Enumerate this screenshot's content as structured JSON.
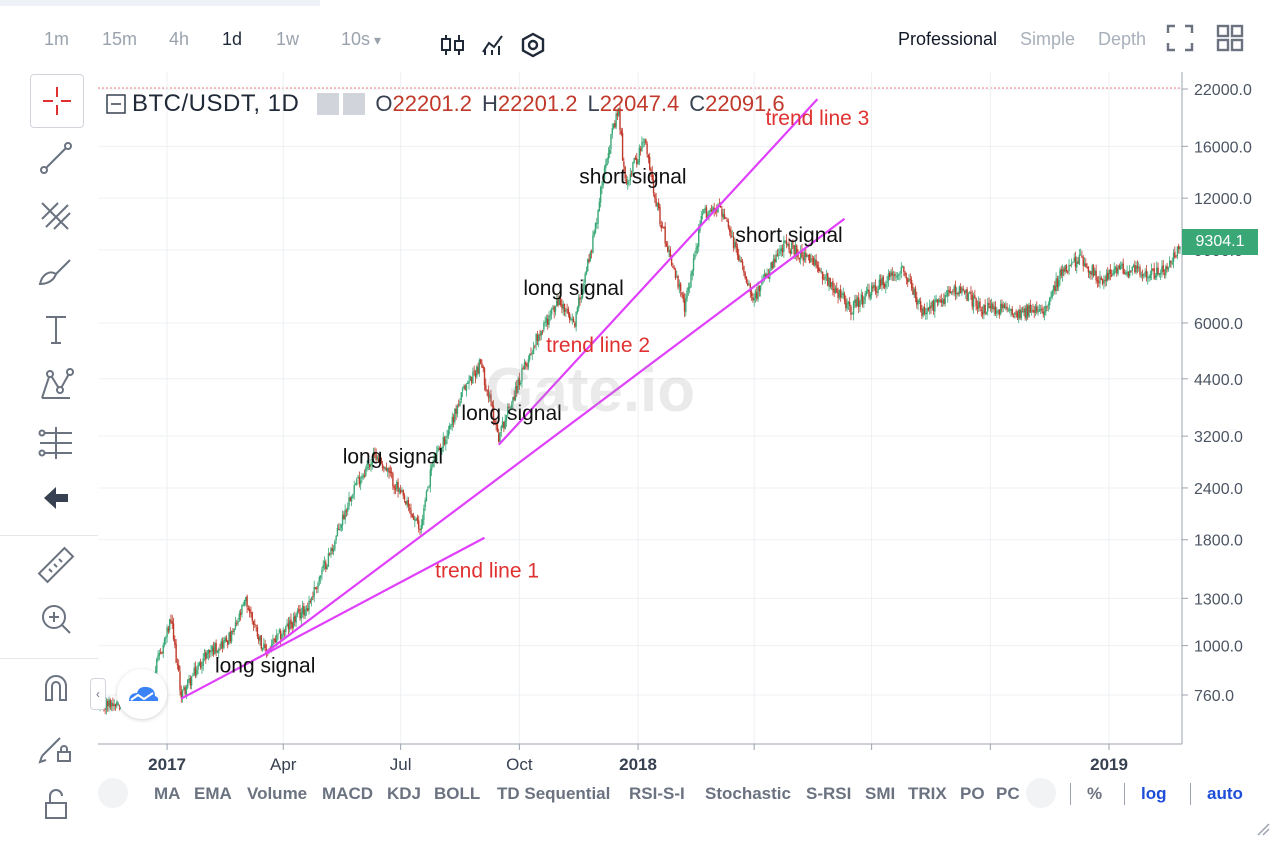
{
  "toolbar": {
    "timeframes": [
      {
        "label": "1m",
        "active": false
      },
      {
        "label": "15m",
        "active": false
      },
      {
        "label": "4h",
        "active": false
      },
      {
        "label": "1d",
        "active": true
      },
      {
        "label": "1w",
        "active": false
      },
      {
        "label": "10s",
        "active": false
      }
    ],
    "dropdown_arrow": "▾",
    "modes": [
      {
        "label": "Professional",
        "active": true
      },
      {
        "label": "Simple",
        "active": false
      },
      {
        "label": "Depth",
        "active": false
      }
    ],
    "icons": [
      "candlestick-icon",
      "indicator-icon",
      "settings-hexagon-icon",
      "fullscreen-icon",
      "grid-layout-icon"
    ]
  },
  "left_tools": [
    "crosshair-icon",
    "trend-line-icon",
    "fib-icon",
    "brush-icon",
    "text-icon",
    "pattern-icon",
    "measure-icon",
    "back-arrow-icon",
    "ruler-icon",
    "zoom-in-icon",
    "magnet-icon",
    "lock-edit-icon",
    "unlock-icon"
  ],
  "legend": {
    "symbol": "BTC/USDT, 1D",
    "o_label": "O",
    "o": "22201.2",
    "h_label": "H",
    "h": "22201.2",
    "l_label": "L",
    "l": "22047.4",
    "c_label": "C",
    "c": "22091.6"
  },
  "last_price": "9304.1",
  "watermark": "Gate.io",
  "indicators": [
    "MA",
    "EMA",
    "Volume",
    "MACD",
    "KDJ",
    "BOLL",
    "TD Sequential",
    "RSI-S-I",
    "Stochastic",
    "S-RSI",
    "SMI",
    "TRIX",
    "PO",
    "PC"
  ],
  "scale_options": [
    {
      "label": "%",
      "active": false
    },
    {
      "label": "log",
      "active": true
    },
    {
      "label": "auto",
      "active": true
    }
  ],
  "colors": {
    "up": "#3aa876",
    "down": "#c0392b",
    "trend_line": "#e040fb",
    "annotation_red": "#e03131",
    "accent_blue": "#1d4ed8"
  },
  "chart_data": {
    "type": "candlestick",
    "scale": "log",
    "ylim": [
      650,
      25000
    ],
    "x_range": [
      "2016-11-10",
      "2019-02-25"
    ],
    "y_ticks": [
      "22000.0",
      "16000.0",
      "12000.0",
      "9000.0",
      "6000.0",
      "4400.0",
      "3200.0",
      "2400.0",
      "1800.0",
      "1300.0",
      "1000.0",
      "760.0"
    ],
    "x_ticks": [
      {
        "date": "2017-01-01",
        "label": "2017",
        "bold": true
      },
      {
        "date": "2017-04-01",
        "label": "Apr",
        "bold": false
      },
      {
        "date": "2017-07-01",
        "label": "Jul",
        "bold": false
      },
      {
        "date": "2017-10-01",
        "label": "Oct",
        "bold": false
      },
      {
        "date": "2018-01-01",
        "label": "2018",
        "bold": true
      },
      {
        "date": "2018-04-01",
        "label": "",
        "bold": false
      },
      {
        "date": "2018-07-01",
        "label": "",
        "bold": false
      },
      {
        "date": "2018-10-01",
        "label": "",
        "bold": false
      },
      {
        "date": "2019-01-01",
        "label": "2019",
        "bold": true
      }
    ],
    "price_path": [
      [
        "2016-11-10",
        710
      ],
      [
        "2016-12-01",
        750
      ],
      [
        "2016-12-20",
        820
      ],
      [
        "2017-01-04",
        1150
      ],
      [
        "2017-01-12",
        760
      ],
      [
        "2017-02-01",
        960
      ],
      [
        "2017-02-20",
        1050
      ],
      [
        "2017-03-03",
        1280
      ],
      [
        "2017-03-18",
        960
      ],
      [
        "2017-04-01",
        1080
      ],
      [
        "2017-04-20",
        1250
      ],
      [
        "2017-05-10",
        1750
      ],
      [
        "2017-05-25",
        2400
      ],
      [
        "2017-06-12",
        2900
      ],
      [
        "2017-06-25",
        2500
      ],
      [
        "2017-07-16",
        1900
      ],
      [
        "2017-07-25",
        2700
      ],
      [
        "2017-08-05",
        3200
      ],
      [
        "2017-08-20",
        4200
      ],
      [
        "2017-09-01",
        4800
      ],
      [
        "2017-09-15",
        3200
      ],
      [
        "2017-09-25",
        3900
      ],
      [
        "2017-10-15",
        5600
      ],
      [
        "2017-11-01",
        6800
      ],
      [
        "2017-11-12",
        5900
      ],
      [
        "2017-11-28",
        9800
      ],
      [
        "2017-12-07",
        15000
      ],
      [
        "2017-12-17",
        19500
      ],
      [
        "2017-12-22",
        13000
      ],
      [
        "2018-01-06",
        16500
      ],
      [
        "2018-01-17",
        11000
      ],
      [
        "2018-02-06",
        6500
      ],
      [
        "2018-02-20",
        11000
      ],
      [
        "2018-03-05",
        11500
      ],
      [
        "2018-04-01",
        6900
      ],
      [
        "2018-04-25",
        9300
      ],
      [
        "2018-05-20",
        8200
      ],
      [
        "2018-06-15",
        6500
      ],
      [
        "2018-07-25",
        8200
      ],
      [
        "2018-08-10",
        6300
      ],
      [
        "2018-09-05",
        7300
      ],
      [
        "2018-09-25",
        6500
      ],
      [
        "2018-10-25",
        6400
      ],
      [
        "2018-11-10",
        6400
      ],
      [
        "2018-11-25",
        7900
      ],
      [
        "2018-12-10",
        8600
      ],
      [
        "2018-12-25",
        7600
      ],
      [
        "2019-01-10",
        8100
      ],
      [
        "2019-02-01",
        7900
      ],
      [
        "2019-02-15",
        8000
      ],
      [
        "2019-02-25",
        9304.1
      ]
    ],
    "trend_lines": [
      {
        "name": "trend line 1",
        "from": [
          "2017-01-12",
          745
        ],
        "to": [
          "2017-09-04",
          1820
        ]
      },
      {
        "name": "trend line 2",
        "from": [
          "2017-03-18",
          960
        ],
        "to": [
          "2018-06-10",
          10700
        ]
      },
      {
        "name": "trend line 3",
        "from": [
          "2017-09-15",
          3050
        ],
        "to": [
          "2018-05-20",
          20800
        ]
      }
    ],
    "annotations": [
      {
        "text": "long signal",
        "color": "black",
        "at": [
          "2017-03-18",
          860
        ]
      },
      {
        "text": "long signal",
        "color": "black",
        "at": [
          "2017-06-25",
          2750
        ]
      },
      {
        "text": "long signal",
        "color": "black",
        "at": [
          "2017-09-25",
          3500
        ]
      },
      {
        "text": "long signal",
        "color": "black",
        "at": [
          "2017-11-12",
          7000
        ]
      },
      {
        "text": "short signal",
        "color": "black",
        "at": [
          "2017-12-28",
          13000
        ]
      },
      {
        "text": "short signal",
        "color": "black",
        "at": [
          "2018-04-28",
          9400
        ]
      },
      {
        "text": "trend line 1",
        "color": "red",
        "at": [
          "2017-09-06",
          1460
        ]
      },
      {
        "text": "trend line 2",
        "color": "red",
        "at": [
          "2017-12-01",
          5100
        ]
      },
      {
        "text": "trend line 3",
        "color": "red",
        "at": [
          "2018-05-20",
          18000
        ]
      }
    ]
  }
}
